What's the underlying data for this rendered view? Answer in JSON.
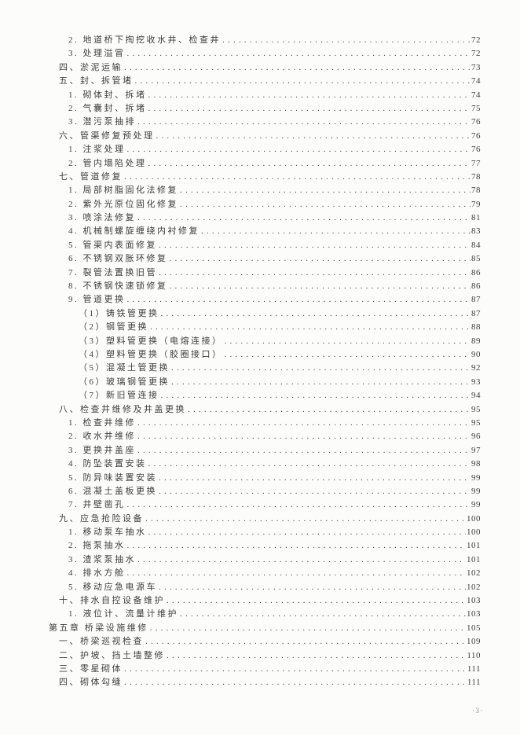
{
  "page": {
    "footer_page_number": "·3·"
  },
  "toc": {
    "entries": [
      {
        "level": 2,
        "label": "2. 地道桥下掏挖收水井、检查井",
        "page": "72"
      },
      {
        "level": 2,
        "label": "3. 处理溢冒",
        "page": "72"
      },
      {
        "level": 1,
        "label": "四、淤泥运输",
        "page": "73"
      },
      {
        "level": 1,
        "label": "五、封、拆管堵",
        "page": "74"
      },
      {
        "level": 2,
        "label": "1. 砌体封、拆堵",
        "page": "74"
      },
      {
        "level": 2,
        "label": "2. 气囊封、拆堵",
        "page": "75"
      },
      {
        "level": 2,
        "label": "3. 潜污泵抽排",
        "page": "76"
      },
      {
        "level": 1,
        "label": "六、管渠修复预处理",
        "page": "76"
      },
      {
        "level": 2,
        "label": "1. 注浆处理",
        "page": "76"
      },
      {
        "level": 2,
        "label": "2. 管内塌陷处理",
        "page": "77"
      },
      {
        "level": 1,
        "label": "七、管道修复",
        "page": "78"
      },
      {
        "level": 2,
        "label": "1. 局部树脂固化法修复",
        "page": "78"
      },
      {
        "level": 2,
        "label": "2. 紫外光原位固化修复",
        "page": "79"
      },
      {
        "level": 2,
        "label": "3. 喷涂法修复",
        "page": "81"
      },
      {
        "level": 2,
        "label": "4. 机械制螺旋缠绕内衬修复",
        "page": "83"
      },
      {
        "level": 2,
        "label": "5. 管渠内表面修复",
        "page": "84"
      },
      {
        "level": 2,
        "label": "6. 不锈钢双胀环修复",
        "page": "85"
      },
      {
        "level": 2,
        "label": "7. 裂管法置换旧管",
        "page": "86"
      },
      {
        "level": 2,
        "label": "8. 不锈钢快速锁修复",
        "page": "86"
      },
      {
        "level": 2,
        "label": "9. 管道更换",
        "page": "87"
      },
      {
        "level": 3,
        "label": "（1）铸铁管更换",
        "page": "87"
      },
      {
        "level": 3,
        "label": "（2）钢管更换",
        "page": "88"
      },
      {
        "level": 3,
        "label": "（3）塑料管更换（电熔连接）",
        "page": "89"
      },
      {
        "level": 3,
        "label": "（4）塑料管更换（胶圈接口）",
        "page": "90"
      },
      {
        "level": 3,
        "label": "（5）混凝土管更换",
        "page": "92"
      },
      {
        "level": 3,
        "label": "（6）玻璃钢管更换",
        "page": "93"
      },
      {
        "level": 3,
        "label": "（7）新旧管连接",
        "page": "94"
      },
      {
        "level": 1,
        "label": "八、检查井维修及井盖更换",
        "page": "95"
      },
      {
        "level": 2,
        "label": "1. 检查井维修",
        "page": "95"
      },
      {
        "level": 2,
        "label": "2. 收水井维修",
        "page": "96"
      },
      {
        "level": 2,
        "label": "3. 更换井盖座",
        "page": "97"
      },
      {
        "level": 2,
        "label": "4. 防坠装置安装",
        "page": "98"
      },
      {
        "level": 2,
        "label": "5. 防异味装置安装",
        "page": "99"
      },
      {
        "level": 2,
        "label": "6. 混凝土盖板更换",
        "page": "99"
      },
      {
        "level": 2,
        "label": "7. 井壁凿孔",
        "page": "99"
      },
      {
        "level": 1,
        "label": "九、应急抢险设备",
        "page": "100"
      },
      {
        "level": 2,
        "label": "1. 移动泵车抽水",
        "page": "100"
      },
      {
        "level": 2,
        "label": "2. 拖泵抽水",
        "page": "101"
      },
      {
        "level": 2,
        "label": "3. 渣浆泵抽水",
        "page": "101"
      },
      {
        "level": 2,
        "label": "4. 排水方舱",
        "page": "102"
      },
      {
        "level": 2,
        "label": "5. 移动应急电源车",
        "page": "102"
      },
      {
        "level": 1,
        "label": "十、排水自控设备维护",
        "page": "103"
      },
      {
        "level": 2,
        "label": "1. 液位计、流量计维护",
        "page": "103"
      },
      {
        "level": 0,
        "label": "第五章 桥梁设施维修",
        "page": "105"
      },
      {
        "level": 1,
        "label": "一、桥梁巡视检查",
        "page": "109"
      },
      {
        "level": 1,
        "label": "二、护坡、挡土墙整修",
        "page": "110"
      },
      {
        "level": 1,
        "label": "三、零星砌体",
        "page": "111"
      },
      {
        "level": 1,
        "label": "四、砌体勾缝",
        "page": "111"
      }
    ]
  }
}
